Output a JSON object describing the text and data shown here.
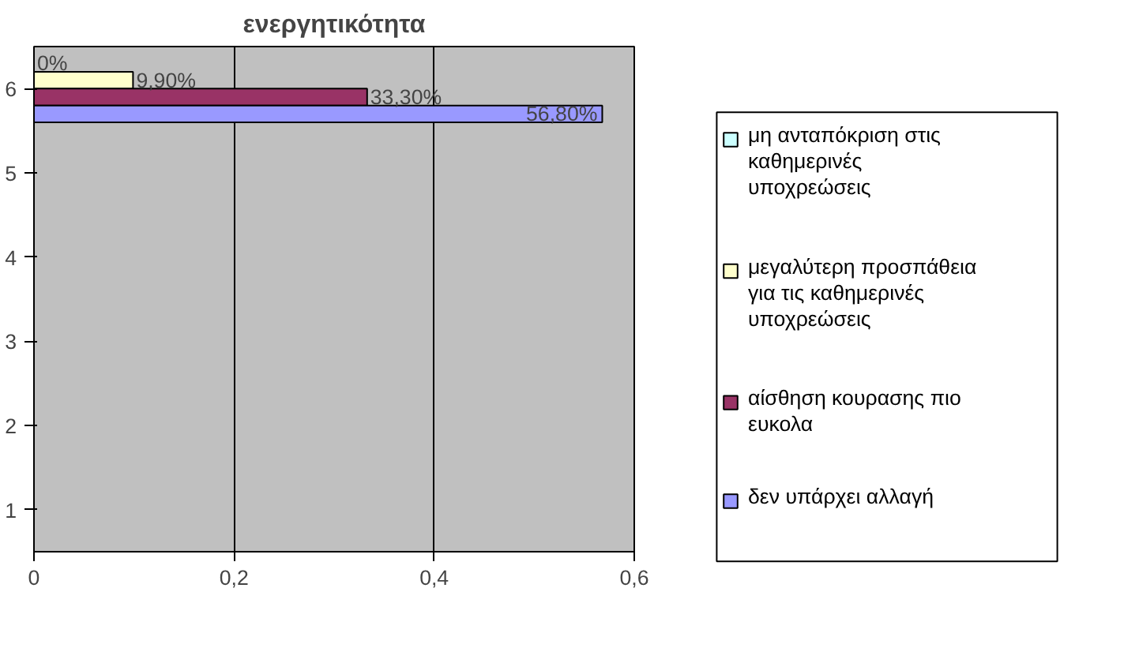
{
  "chart_data": {
    "type": "bar",
    "orientation": "horizontal",
    "title": "ενεργητικότητα",
    "categories": [
      "6",
      "5",
      "4",
      "3",
      "2",
      "1"
    ],
    "series": [
      {
        "name": "μη ανταπόκριση στις καθημερινές υποχρεώσεις",
        "color": "#ccffff",
        "values": [
          0,
          null,
          null,
          null,
          null,
          null
        ],
        "value_labels": [
          "0%",
          null,
          null,
          null,
          null,
          null
        ]
      },
      {
        "name": "μεγαλύτερη προσπάθεια για τις καθημερινές υποχρεώσεις",
        "color": "#ffffcc",
        "values": [
          0.099,
          null,
          null,
          null,
          null,
          null
        ],
        "value_labels": [
          "9,90%",
          null,
          null,
          null,
          null,
          null
        ]
      },
      {
        "name": "αίσθηση κουρασης πιο ευκολα",
        "color": "#993366",
        "values": [
          0.333,
          null,
          null,
          null,
          null,
          null
        ],
        "value_labels": [
          "33,30%",
          null,
          null,
          null,
          null,
          null
        ]
      },
      {
        "name": "δεν υπάρχει αλλαγή",
        "color": "#9999ff",
        "values": [
          0.568,
          null,
          null,
          null,
          null,
          null
        ],
        "value_labels": [
          "56,80%",
          null,
          null,
          null,
          null,
          null
        ]
      }
    ],
    "xlim": [
      0,
      0.6
    ],
    "xticks": [
      {
        "value": 0,
        "label": "0"
      },
      {
        "value": 0.2,
        "label": "0,2"
      },
      {
        "value": 0.4,
        "label": "0,4"
      },
      {
        "value": 0.6,
        "label": "0,6"
      }
    ],
    "grid": "x",
    "legend": "right"
  }
}
